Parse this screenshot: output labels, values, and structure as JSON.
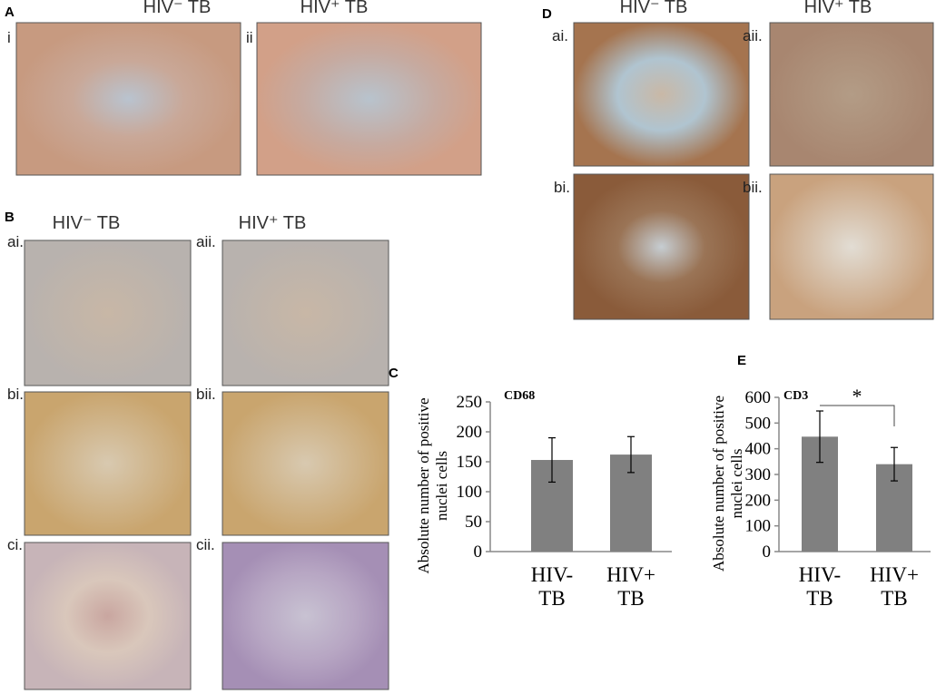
{
  "panels": {
    "A": {
      "label": "A",
      "headers": [
        "HIV⁻ TB",
        "HIV⁺ TB"
      ],
      "images": [
        "i",
        "ii"
      ]
    },
    "B": {
      "label": "B",
      "headers": [
        "HIV⁻ TB",
        "HIV⁺ TB"
      ],
      "images": [
        "ai.",
        "aii.",
        "bi.",
        "bii.",
        "ci.",
        "cii."
      ]
    },
    "C": {
      "label": "C"
    },
    "D": {
      "label": "D",
      "headers": [
        "HIV⁻ TB",
        "HIV⁺ TB"
      ],
      "images": [
        "ai.",
        "aii.",
        "bi.",
        "bii."
      ]
    },
    "E": {
      "label": "E"
    }
  },
  "chart_data": [
    {
      "type": "bar",
      "annotation": "CD68",
      "categories": [
        "HIV- TB",
        "HIV+ TB"
      ],
      "values": [
        153,
        162
      ],
      "errors": [
        37,
        30
      ],
      "color": "#808080",
      "ylim": [
        0,
        250
      ],
      "yticks": [
        0,
        50,
        100,
        150,
        200,
        250
      ],
      "ylabel": [
        "Absolute number of positive",
        "nuclei cells"
      ]
    },
    {
      "type": "bar",
      "annotation": "CD3",
      "categories": [
        "HIV- TB",
        "HIV+ TB"
      ],
      "values": [
        447,
        340
      ],
      "errors": [
        100,
        65
      ],
      "color": "#808080",
      "ylim": [
        0,
        600
      ],
      "yticks": [
        0,
        100,
        200,
        300,
        400,
        500,
        600
      ],
      "ylabel": [
        "Absolute number of positive",
        "nuclei cells"
      ],
      "significance": "*"
    }
  ]
}
